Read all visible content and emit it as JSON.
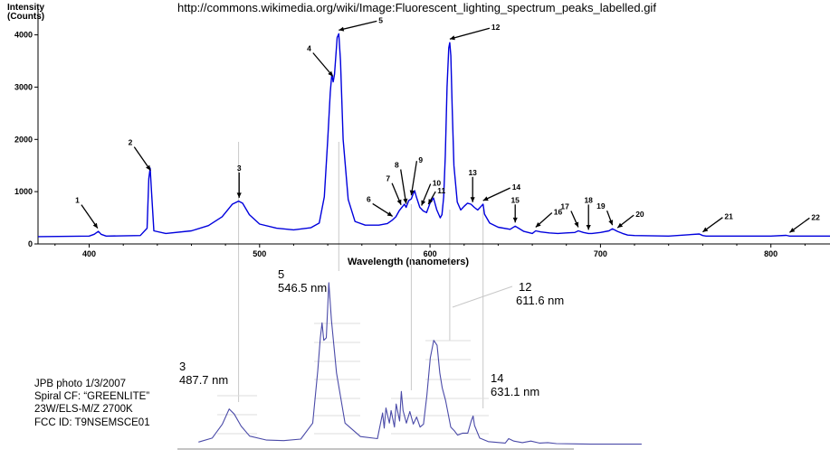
{
  "header": {
    "url": "http://commons.wikimedia.org/wiki/Image:Fluorescent_lighting_spectrum_peaks_labelled.gif",
    "y_axis_label_line1": "Intensity",
    "y_axis_label_line2": "(Counts)",
    "x_axis_label": "Wavelength (nanometers)"
  },
  "colors": {
    "spectrum_line": "#0000dd",
    "photo_trace": "#4a4aa8",
    "guide_line": "#c8c8c8",
    "axis": "#000000"
  },
  "chart_data": [
    {
      "type": "line",
      "title": "",
      "xlabel": "Wavelength (nanometers)",
      "ylabel": "Intensity (Counts)",
      "xlim": [
        370,
        835
      ],
      "ylim": [
        0,
        4100
      ],
      "x_ticks": [
        400,
        500,
        600,
        700,
        800
      ],
      "y_ticks": [
        0,
        1000,
        2000,
        3000,
        4000
      ],
      "tick_labels_x": [
        "400",
        "500",
        "600",
        "700",
        "800"
      ],
      "tick_labels_y": [
        "0",
        "1000",
        "2000",
        "3000",
        "4000"
      ],
      "grid": false,
      "series": [
        {
          "name": "",
          "x": [
            370,
            400,
            403,
            405.4,
            407,
            410,
            430,
            434,
            435,
            435.8,
            436.6,
            438,
            445,
            460,
            470,
            478,
            484,
            487.7,
            490,
            494,
            500,
            510,
            520,
            530,
            535,
            538,
            540,
            541.5,
            542.4,
            543.2,
            544,
            545.5,
            546.5,
            547.5,
            549,
            552,
            556,
            562,
            570,
            575,
            578,
            580,
            582,
            584,
            585,
            586,
            587.5,
            589,
            590,
            591,
            592,
            594,
            596,
            598,
            600,
            602,
            604,
            606,
            607,
            608,
            609,
            610,
            611,
            611.6,
            612.2,
            613,
            614,
            616,
            618,
            620,
            622,
            624,
            626,
            628,
            630,
            631.1,
            632,
            635,
            640,
            647,
            650,
            652,
            655,
            660,
            662,
            665,
            670,
            675,
            680,
            685,
            687,
            690,
            693,
            695,
            700,
            705,
            707,
            710,
            713,
            716,
            720,
            740,
            758,
            760,
            762,
            780,
            800,
            809,
            811,
            813,
            835
          ],
          "values": [
            140,
            150,
            185,
            240,
            185,
            150,
            160,
            300,
            1250,
            1450,
            1000,
            250,
            200,
            250,
            350,
            520,
            760,
            820,
            780,
            560,
            380,
            300,
            270,
            310,
            400,
            900,
            2000,
            2900,
            3250,
            3100,
            3250,
            3950,
            4020,
            3500,
            2000,
            850,
            430,
            360,
            360,
            390,
            460,
            520,
            640,
            720,
            760,
            700,
            830,
            860,
            950,
            1020,
            900,
            700,
            630,
            600,
            780,
            880,
            650,
            500,
            560,
            900,
            1700,
            3000,
            3750,
            3850,
            3600,
            2600,
            1500,
            800,
            650,
            720,
            780,
            760,
            700,
            650,
            720,
            760,
            570,
            400,
            320,
            280,
            340,
            300,
            240,
            200,
            250,
            230,
            210,
            200,
            210,
            220,
            250,
            220,
            200,
            200,
            220,
            250,
            290,
            240,
            200,
            170,
            160,
            150,
            190,
            160,
            150,
            150,
            150,
            165,
            150,
            150,
            150
          ]
        }
      ],
      "peak_labels": [
        {
          "id": "1",
          "x": 405
        },
        {
          "id": "2",
          "x": 436
        },
        {
          "id": "3",
          "x": 488
        },
        {
          "id": "4",
          "x": 543
        },
        {
          "id": "5",
          "x": 546.5
        },
        {
          "id": "6",
          "x": 578
        },
        {
          "id": "7",
          "x": 583
        },
        {
          "id": "8",
          "x": 586
        },
        {
          "id": "9",
          "x": 589
        },
        {
          "id": "10",
          "x": 595
        },
        {
          "id": "11",
          "x": 599
        },
        {
          "id": "12",
          "x": 611.6
        },
        {
          "id": "13",
          "x": 625
        },
        {
          "id": "14",
          "x": 631.1
        },
        {
          "id": "15",
          "x": 650
        },
        {
          "id": "16",
          "x": 662
        },
        {
          "id": "17",
          "x": 687
        },
        {
          "id": "18",
          "x": 693
        },
        {
          "id": "19",
          "x": 707
        },
        {
          "id": "20",
          "x": 710
        },
        {
          "id": "21",
          "x": 760
        },
        {
          "id": "22",
          "x": 811
        }
      ]
    },
    {
      "type": "line",
      "title": "",
      "xlabel": "",
      "ylabel": "",
      "xlim": [
        370,
        835
      ],
      "ylim": [
        0,
        4100
      ],
      "grid": true,
      "series": [
        {
          "name": "",
          "x": [
            470,
            478,
            484,
            488,
            491,
            495,
            500,
            510,
            520,
            530,
            537,
            540,
            541.5,
            542.5,
            543.5,
            545,
            546.5,
            548,
            551,
            556,
            565,
            575,
            578,
            579,
            580,
            582,
            583,
            585,
            586,
            588,
            589,
            590,
            592,
            594,
            596,
            598,
            600,
            602,
            604,
            606,
            608,
            610,
            611.6,
            613,
            615,
            618,
            620,
            622,
            625,
            628,
            630,
            631.1,
            632,
            635,
            640,
            650,
            652,
            655,
            660,
            665,
            670,
            675,
            680,
            700,
            730
          ],
          "values": [
            120,
            200,
            480,
            780,
            680,
            440,
            240,
            160,
            150,
            180,
            500,
            1550,
            2200,
            2500,
            2150,
            2200,
            3300,
            2550,
            1500,
            500,
            230,
            190,
            700,
            400,
            800,
            500,
            750,
            420,
            880,
            540,
            1130,
            750,
            500,
            730,
            480,
            620,
            420,
            480,
            1050,
            1800,
            2150,
            2050,
            1500,
            1200,
            950,
            420,
            350,
            260,
            300,
            300,
            540,
            640,
            450,
            200,
            130,
            100,
            190,
            140,
            110,
            140,
            100,
            110,
            90,
            80,
            80
          ]
        }
      ],
      "annotations": [
        {
          "peak": "3",
          "line1": "3",
          "line2": "487.7 nm"
        },
        {
          "peak": "5",
          "line1": "5",
          "line2": "546.5 nm"
        },
        {
          "peak": "12",
          "line1": "12",
          "line2": "611.6 nm"
        },
        {
          "peak": "14",
          "line1": "14",
          "line2": "631.1 nm"
        }
      ]
    }
  ],
  "photo_caption": {
    "line1": "JPB photo 1/3/2007",
    "line2": "Spiral CF: “GREENLITE”",
    "line3": "23W/ELS-M/Z 2700K",
    "line4": "FCC ID: T9NSEMSCE01"
  }
}
